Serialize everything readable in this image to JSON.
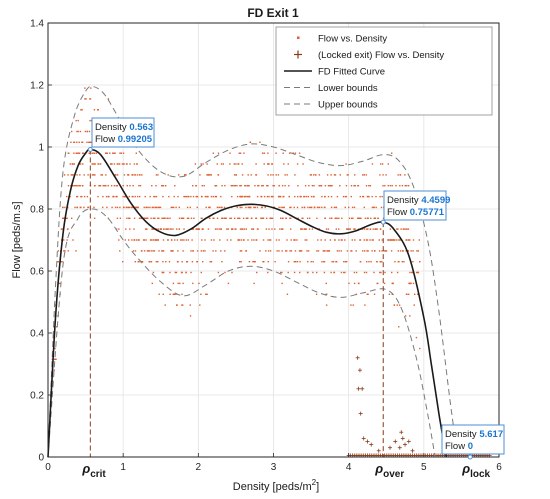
{
  "chart_data": {
    "type": "scatter",
    "title": "FD Exit 1",
    "xlabel": "Density [peds/m",
    "xlabel_sup": "2",
    "xlabel_close": "]",
    "ylabel": "Flow [peds/m.s]",
    "xlim": [
      0,
      6
    ],
    "ylim": [
      0,
      1.4
    ],
    "xticks": [
      "0",
      "1",
      "2",
      "3",
      "4",
      "5",
      "6"
    ],
    "yticks": [
      "0",
      "0.2",
      "0.4",
      "0.6",
      "0.8",
      "1",
      "1.2",
      "1.4"
    ],
    "grid": true,
    "legend_placement": "top-right",
    "legend": [
      "Flow vs. Density",
      "(Locked exit) Flow vs. Density",
      "FD Fitted Curve",
      "Lower bounds",
      "Upper bounds"
    ],
    "series": [
      {
        "name": "FD Fitted Curve",
        "x": [
          0,
          0.1,
          0.2,
          0.3,
          0.4,
          0.5,
          0.563,
          0.7,
          0.9,
          1.1,
          1.3,
          1.5,
          1.7,
          1.9,
          2.1,
          2.3,
          2.5,
          2.7,
          2.9,
          3.1,
          3.3,
          3.5,
          3.7,
          3.9,
          4.1,
          4.3,
          4.4599,
          4.6,
          4.8,
          5.0,
          5.1,
          5.2,
          5.3
        ],
        "y": [
          0,
          0.45,
          0.72,
          0.86,
          0.94,
          0.98,
          0.99205,
          0.975,
          0.9,
          0.82,
          0.76,
          0.725,
          0.715,
          0.735,
          0.77,
          0.795,
          0.81,
          0.815,
          0.81,
          0.795,
          0.77,
          0.745,
          0.725,
          0.72,
          0.73,
          0.75,
          0.75771,
          0.735,
          0.65,
          0.45,
          0.3,
          0.14,
          0.0
        ]
      },
      {
        "name": "Lower bounds",
        "x": [
          0,
          0.2,
          0.4,
          0.6,
          0.8,
          1.0,
          1.2,
          1.5,
          1.8,
          2.1,
          2.4,
          2.7,
          3.0,
          3.3,
          3.6,
          3.9,
          4.2,
          4.5,
          4.7,
          4.9,
          5.05,
          5.15
        ],
        "y": [
          0,
          0.62,
          0.77,
          0.8,
          0.77,
          0.7,
          0.64,
          0.565,
          0.52,
          0.555,
          0.6,
          0.615,
          0.6,
          0.565,
          0.53,
          0.515,
          0.53,
          0.54,
          0.48,
          0.32,
          0.14,
          0.0
        ]
      },
      {
        "name": "Upper bounds",
        "x": [
          0,
          0.1,
          0.2,
          0.35,
          0.5,
          0.6,
          0.75,
          0.95,
          1.2,
          1.5,
          1.8,
          2.1,
          2.4,
          2.7,
          3.0,
          3.3,
          3.6,
          3.9,
          4.2,
          4.45,
          4.65,
          4.85,
          5.05,
          5.2,
          5.35,
          5.45
        ],
        "y": [
          0,
          0.55,
          0.92,
          1.1,
          1.18,
          1.195,
          1.17,
          1.09,
          0.99,
          0.92,
          0.905,
          0.95,
          0.99,
          1.01,
          1.0,
          0.975,
          0.95,
          0.94,
          0.955,
          0.975,
          0.96,
          0.88,
          0.7,
          0.47,
          0.18,
          0.0
        ]
      }
    ],
    "vlines": [
      {
        "x": 0.563,
        "y": 0.99205
      },
      {
        "x": 4.4599,
        "y": 0.75771
      }
    ],
    "special_labels": [
      {
        "base": "ρ",
        "sub": "crit",
        "x": 0.563
      },
      {
        "base": "ρ",
        "sub": "over",
        "x": 4.4599
      },
      {
        "base": "ρ",
        "sub": "lock",
        "x": 5.617
      }
    ],
    "datatips": [
      {
        "density_label": "Density",
        "density": "0.563",
        "flow_label": "Flow",
        "flow": "0.99205",
        "x": 0.563,
        "y": 0.99205
      },
      {
        "density_label": "Density",
        "density": "4.4599",
        "flow_label": "Flow",
        "flow": "0.75771",
        "x": 4.4599,
        "y": 0.75771
      },
      {
        "density_label": "Density",
        "density": "5.617",
        "flow_label": "Flow",
        "flow": "0",
        "x": 5.617,
        "y": 0
      }
    ],
    "colors": {
      "scatter": "#e06030",
      "locked": "#8b3a1a",
      "fit": "#1a1a1a",
      "bounds": "#7a7a7a",
      "vline": "#8b3a1a",
      "tip_value": "#1a75d2",
      "tip_border": "#4f8fd6"
    }
  }
}
